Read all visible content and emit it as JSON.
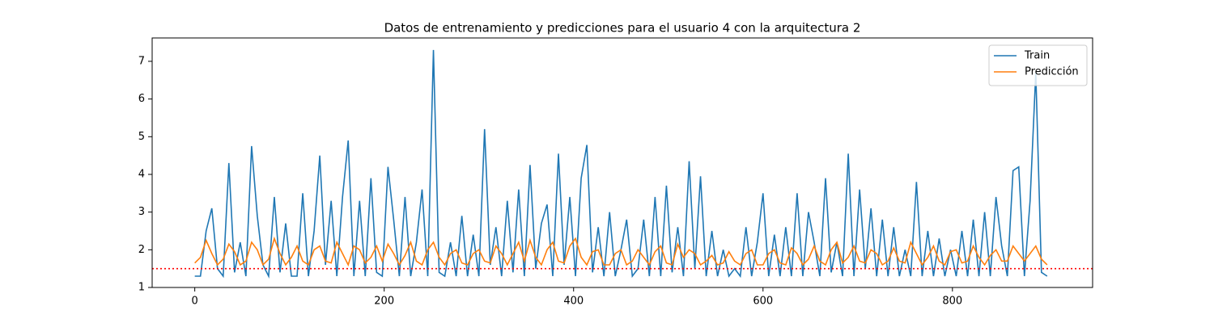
{
  "chart_data": {
    "type": "line",
    "title": "Datos de entrenamiento y predicciones para el usuario 4 con la arquitectura 2",
    "x": [
      0,
      6,
      12,
      18,
      24,
      30,
      36,
      42,
      48,
      54,
      60,
      66,
      72,
      78,
      84,
      90,
      96,
      102,
      108,
      114,
      120,
      126,
      132,
      138,
      144,
      150,
      156,
      162,
      168,
      174,
      180,
      186,
      192,
      198,
      204,
      210,
      216,
      222,
      228,
      234,
      240,
      246,
      252,
      258,
      264,
      270,
      276,
      282,
      288,
      294,
      300,
      306,
      312,
      318,
      324,
      330,
      336,
      342,
      348,
      354,
      360,
      366,
      372,
      378,
      384,
      390,
      396,
      402,
      408,
      414,
      420,
      426,
      432,
      438,
      444,
      450,
      456,
      462,
      468,
      474,
      480,
      486,
      492,
      498,
      504,
      510,
      516,
      522,
      528,
      534,
      540,
      546,
      552,
      558,
      564,
      570,
      576,
      582,
      588,
      594,
      600,
      606,
      612,
      618,
      624,
      630,
      636,
      642,
      648,
      654,
      660,
      666,
      672,
      678,
      684,
      690,
      696,
      702,
      708,
      714,
      720,
      726,
      732,
      738,
      744,
      750,
      756,
      762,
      768,
      774,
      780,
      786,
      792,
      798,
      804,
      810,
      816,
      822,
      828,
      834,
      840,
      846,
      852,
      858,
      864,
      870,
      876,
      882,
      888,
      894,
      900
    ],
    "series": [
      {
        "name": "Train",
        "color": "#1f77b4",
        "values": [
          1.3,
          1.3,
          2.5,
          3.1,
          1.5,
          1.3,
          4.3,
          1.4,
          2.2,
          1.3,
          4.75,
          2.9,
          1.6,
          1.3,
          3.4,
          1.4,
          2.7,
          1.3,
          1.3,
          3.5,
          1.3,
          2.5,
          4.5,
          1.6,
          3.3,
          1.3,
          3.4,
          4.9,
          1.3,
          3.3,
          1.3,
          3.9,
          1.4,
          1.3,
          4.2,
          2.8,
          1.3,
          3.4,
          1.3,
          2.2,
          3.6,
          1.3,
          7.3,
          1.4,
          1.3,
          2.2,
          1.3,
          2.9,
          1.3,
          2.4,
          1.3,
          5.2,
          1.6,
          2.6,
          1.3,
          3.3,
          1.4,
          3.6,
          1.3,
          4.25,
          1.5,
          2.7,
          3.2,
          1.3,
          4.55,
          1.6,
          3.4,
          1.3,
          3.9,
          4.78,
          1.4,
          2.6,
          1.3,
          3.0,
          1.3,
          2.0,
          2.8,
          1.3,
          1.5,
          2.8,
          1.3,
          3.4,
          1.3,
          3.7,
          1.4,
          2.6,
          1.3,
          4.35,
          1.5,
          3.95,
          1.3,
          2.5,
          1.3,
          2.0,
          1.3,
          1.5,
          1.3,
          2.6,
          1.3,
          2.2,
          3.5,
          1.3,
          2.4,
          1.3,
          2.6,
          1.3,
          3.5,
          1.3,
          3.0,
          2.2,
          1.3,
          3.9,
          1.4,
          2.2,
          1.3,
          4.55,
          1.3,
          3.6,
          1.5,
          3.1,
          1.3,
          2.8,
          1.3,
          2.6,
          1.3,
          2.0,
          1.3,
          3.8,
          1.3,
          2.5,
          1.3,
          2.3,
          1.3,
          2.0,
          1.3,
          2.5,
          1.3,
          2.8,
          1.3,
          3.0,
          1.3,
          3.4,
          2.1,
          1.3,
          4.1,
          4.2,
          1.3,
          3.3,
          6.7,
          1.4,
          1.3
        ]
      },
      {
        "name": "Predicción",
        "color": "#ff7f0e",
        "values": [
          1.65,
          1.8,
          2.25,
          1.9,
          1.6,
          1.75,
          2.15,
          1.95,
          1.6,
          1.7,
          2.2,
          2.0,
          1.6,
          1.75,
          2.3,
          1.9,
          1.6,
          1.8,
          2.1,
          1.7,
          1.6,
          2.0,
          2.1,
          1.7,
          1.65,
          2.2,
          1.9,
          1.6,
          2.1,
          2.0,
          1.65,
          1.8,
          2.1,
          1.7,
          2.15,
          1.9,
          1.6,
          1.85,
          2.2,
          1.7,
          1.6,
          2.0,
          2.2,
          1.8,
          1.6,
          1.9,
          2.0,
          1.65,
          1.6,
          1.9,
          2.0,
          1.7,
          1.65,
          2.1,
          1.9,
          1.6,
          1.9,
          2.2,
          1.7,
          2.25,
          1.8,
          1.6,
          2.0,
          2.2,
          1.7,
          1.65,
          2.1,
          2.3,
          1.8,
          1.6,
          1.95,
          2.0,
          1.6,
          1.6,
          1.9,
          2.0,
          1.6,
          1.7,
          2.0,
          1.8,
          1.6,
          1.95,
          2.1,
          1.65,
          1.6,
          2.15,
          1.8,
          2.0,
          1.9,
          1.6,
          1.7,
          1.85,
          1.6,
          1.65,
          1.95,
          1.7,
          1.6,
          1.9,
          2.0,
          1.6,
          1.6,
          1.9,
          2.0,
          1.65,
          1.6,
          2.05,
          1.9,
          1.6,
          1.75,
          2.1,
          1.7,
          1.6,
          2.0,
          2.2,
          1.65,
          1.8,
          2.1,
          1.7,
          1.65,
          2.0,
          1.9,
          1.6,
          1.7,
          2.05,
          1.7,
          1.65,
          2.2,
          1.9,
          1.6,
          1.8,
          2.1,
          1.7,
          1.6,
          1.95,
          2.0,
          1.65,
          1.7,
          2.1,
          1.8,
          1.6,
          1.85,
          2.0,
          1.7,
          1.7,
          2.1,
          1.9,
          1.7,
          1.9,
          2.1,
          1.75,
          1.6
        ]
      }
    ],
    "hline": {
      "value": 1.5,
      "color": "#ff0000",
      "style": "dotted"
    },
    "xlim": [
      -45,
      948
    ],
    "ylim": [
      1,
      7.62
    ],
    "xticks": [
      0,
      200,
      400,
      600,
      800
    ],
    "yticks": [
      1,
      2,
      3,
      4,
      5,
      6,
      7
    ],
    "legend": "upper right"
  }
}
